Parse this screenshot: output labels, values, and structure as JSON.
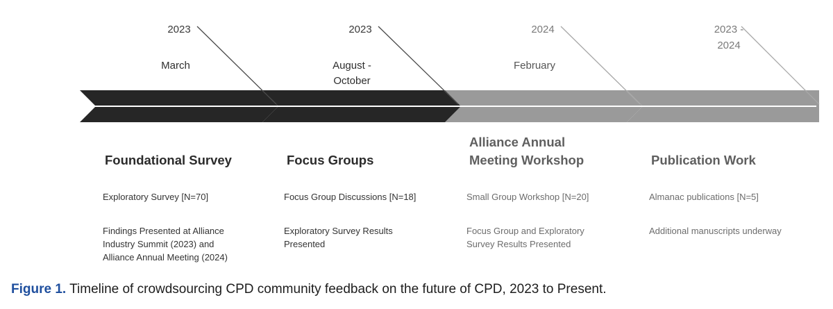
{
  "timeline": {
    "stages": [
      {
        "year": "2023",
        "period": "March",
        "title": "Foundational Survey",
        "items": [
          "Exploratory Survey [N=70]",
          "Findings Presented at Alliance Industry Summit (2023) and Alliance Annual Meeting (2024)"
        ],
        "arrow_color": "#262626"
      },
      {
        "year": "2023",
        "period": "August - October",
        "title": "Focus Groups",
        "items": [
          "Focus Group Discussions [N=18]",
          "Exploratory Survey Results Presented"
        ],
        "arrow_color": "#262626"
      },
      {
        "year": "2024",
        "period": "February",
        "title": "Alliance Annual Meeting Workshop",
        "items": [
          "Small Group Workshop [N=20]",
          "Focus Group and Exploratory Survey Results Presented"
        ],
        "arrow_color": "#9a9a9a"
      },
      {
        "year": "2023 - 2024",
        "period": "",
        "title": "Publication Work",
        "items": [
          "Almanac publications [N=5]",
          "Additional manuscripts underway"
        ],
        "arrow_color": "#9a9a9a"
      }
    ]
  },
  "caption": {
    "label": "Figure 1.",
    "text": " Timeline of crowdsourcing CPD community feedback on the future of CPD, 2023 to Present."
  }
}
